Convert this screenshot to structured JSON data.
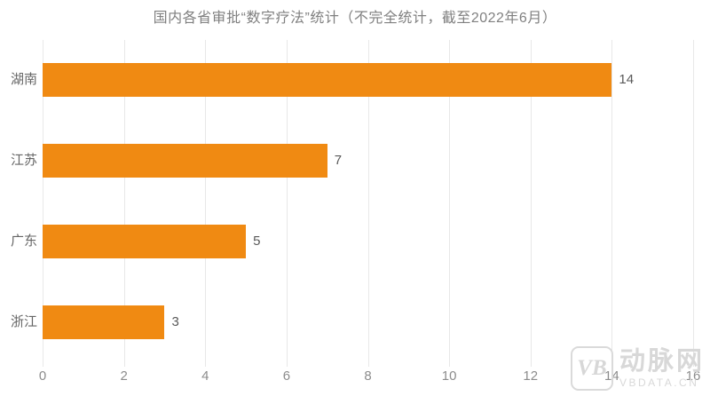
{
  "title": "国内各省审批“数字疗法”统计（不完全统计，截至2022年6月）",
  "colors": {
    "bar": "#F08A12",
    "title_text": "#808080",
    "gridline": "#E8E8E8",
    "value_label": "#595959",
    "category_label": "#666666",
    "tick_label": "#8C8C8C"
  },
  "watermark": {
    "logo_text": "VB",
    "brand_name": "动脉网",
    "domain": "VBDATA.CN"
  },
  "chart_data": {
    "type": "bar",
    "orientation": "horizontal",
    "title": "国内各省审批“数字疗法”统计（不完全统计，截至2022年6月）",
    "categories": [
      "湖南",
      "江苏",
      "广东",
      "浙江"
    ],
    "values": [
      14,
      7,
      5,
      3
    ],
    "xlabel": "",
    "ylabel": "",
    "xlim": [
      0,
      16
    ],
    "x_ticks": [
      0,
      2,
      4,
      6,
      8,
      10,
      12,
      14,
      16
    ],
    "grid": true,
    "legend_position": "none",
    "data_labels": [
      14,
      7,
      5,
      3
    ]
  }
}
